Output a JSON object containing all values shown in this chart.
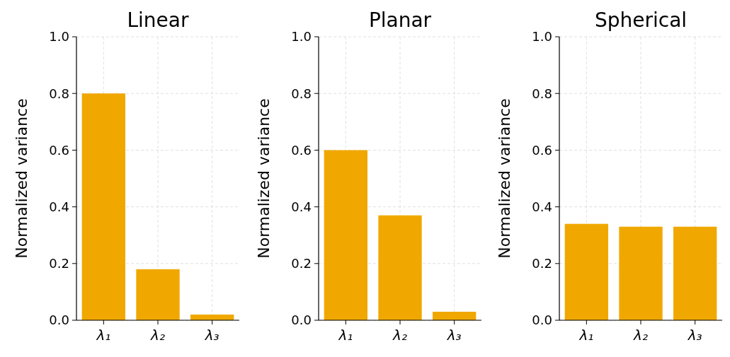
{
  "chart_data": [
    {
      "type": "bar",
      "title": "Linear",
      "ylabel": "Normalized variance",
      "categories": [
        "λ₁",
        "λ₂",
        "λ₃"
      ],
      "values": [
        0.8,
        0.18,
        0.02
      ],
      "color": "#f0a800",
      "ylim": [
        0,
        1
      ],
      "yticks": [
        {
          "value": 0,
          "label": "0.0"
        },
        {
          "value": 0.2,
          "label": "0.2"
        },
        {
          "value": 0.4,
          "label": "0.4"
        },
        {
          "value": 0.6,
          "label": "0.6"
        },
        {
          "value": 0.8,
          "label": "0.8"
        },
        {
          "value": 1,
          "label": "1.0"
        }
      ],
      "grid": true
    },
    {
      "type": "bar",
      "title": "Planar",
      "ylabel": "Normalized variance",
      "categories": [
        "λ₁",
        "λ₂",
        "λ₃"
      ],
      "values": [
        0.6,
        0.37,
        0.03
      ],
      "color": "#f0a800",
      "ylim": [
        0,
        1
      ],
      "yticks": [
        {
          "value": 0,
          "label": "0.0"
        },
        {
          "value": 0.2,
          "label": "0.2"
        },
        {
          "value": 0.4,
          "label": "0.4"
        },
        {
          "value": 0.6,
          "label": "0.6"
        },
        {
          "value": 0.8,
          "label": "0.8"
        },
        {
          "value": 1,
          "label": "1.0"
        }
      ],
      "grid": true
    },
    {
      "type": "bar",
      "title": "Spherical",
      "ylabel": "Normalized variance",
      "categories": [
        "λ₁",
        "λ₂",
        "λ₃"
      ],
      "values": [
        0.34,
        0.33,
        0.33
      ],
      "color": "#f0a800",
      "ylim": [
        0,
        1
      ],
      "yticks": [
        {
          "value": 0,
          "label": "0.0"
        },
        {
          "value": 0.2,
          "label": "0.2"
        },
        {
          "value": 0.4,
          "label": "0.4"
        },
        {
          "value": 0.6,
          "label": "0.6"
        },
        {
          "value": 0.8,
          "label": "0.8"
        },
        {
          "value": 1,
          "label": "1.0"
        }
      ],
      "grid": true
    }
  ]
}
